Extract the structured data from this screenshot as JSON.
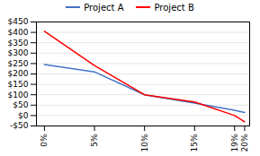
{
  "chart_data": {
    "type": "line",
    "x": [
      0,
      5,
      10,
      15,
      19,
      20
    ],
    "series": [
      {
        "name": "Project A",
        "color": "#4472C4",
        "values": [
          245,
          210,
          100,
          60,
          25,
          15
        ]
      },
      {
        "name": "Project B",
        "color": "#FF0000",
        "values": [
          405,
          240,
          100,
          65,
          0,
          -30
        ]
      }
    ],
    "xlim": [
      -0.8,
      20.5
    ],
    "xticks": [
      {
        "value": 0,
        "label": "0%"
      },
      {
        "value": 5,
        "label": "5%"
      },
      {
        "value": 10,
        "label": "10%"
      },
      {
        "value": 15,
        "label": "15%"
      },
      {
        "value": 19,
        "label": "19%"
      },
      {
        "value": 20,
        "label": "20%"
      }
    ],
    "ylim": [
      -50,
      450
    ],
    "yticks": [
      {
        "value": -50,
        "label": "-$50"
      },
      {
        "value": 0,
        "label": "$0"
      },
      {
        "value": 50,
        "label": "$50"
      },
      {
        "value": 100,
        "label": "$100"
      },
      {
        "value": 150,
        "label": "$150"
      },
      {
        "value": 200,
        "label": "$200"
      },
      {
        "value": 250,
        "label": "$250"
      },
      {
        "value": 300,
        "label": "$300"
      },
      {
        "value": 350,
        "label": "$350"
      },
      {
        "value": 400,
        "label": "$400"
      },
      {
        "value": 450,
        "label": "$450"
      }
    ],
    "grid": true,
    "legend": "top"
  }
}
